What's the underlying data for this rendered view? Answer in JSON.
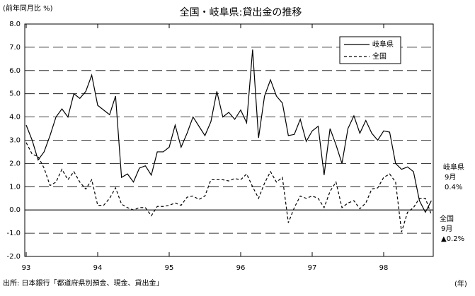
{
  "chart_data": {
    "type": "line",
    "title": "全国・岐阜県:貸出金の推移",
    "y_label": "(前年同月比 %)",
    "x_label": "(年)",
    "source": "出所: 日本銀行「都道府県別預金、現金、貸出金」",
    "categories": [
      "93",
      null,
      null,
      null,
      null,
      null,
      null,
      null,
      null,
      null,
      null,
      null,
      "94",
      null,
      null,
      null,
      null,
      null,
      null,
      null,
      null,
      null,
      null,
      null,
      "95",
      null,
      null,
      null,
      null,
      null,
      null,
      null,
      null,
      null,
      null,
      null,
      "96",
      null,
      null,
      null,
      null,
      null,
      null,
      null,
      null,
      null,
      null,
      null,
      "97",
      null,
      null,
      null,
      null,
      null,
      null,
      null,
      null,
      null,
      null,
      null,
      "98",
      null,
      null,
      null,
      null,
      null,
      null,
      null,
      null
    ],
    "ylim": [
      -2,
      8
    ],
    "yticks": [
      {
        "value": -2,
        "label": "-2.0"
      },
      {
        "value": -1,
        "label": "-1.0"
      },
      {
        "value": 0,
        "label": "0.0"
      },
      {
        "value": 1,
        "label": "1.0"
      },
      {
        "value": 2,
        "label": "2.0"
      },
      {
        "value": 3,
        "label": "3.0"
      },
      {
        "value": 4,
        "label": "4.0"
      },
      {
        "value": 5,
        "label": "5.0"
      },
      {
        "value": 6,
        "label": "6.0"
      },
      {
        "value": 7,
        "label": "7.0"
      },
      {
        "value": 8,
        "label": "8.0"
      }
    ],
    "grid": true,
    "legend": "upper right",
    "series": [
      {
        "name": "岐阜県",
        "color": "#000000",
        "line_style": "solid",
        "values": [
          3.65,
          3.0,
          2.15,
          2.5,
          3.2,
          4.0,
          4.35,
          4.0,
          5.0,
          4.8,
          5.1,
          5.8,
          4.5,
          4.3,
          4.1,
          4.9,
          1.4,
          1.55,
          1.2,
          1.8,
          1.9,
          1.5,
          2.5,
          2.5,
          2.7,
          3.65,
          2.7,
          3.3,
          4.0,
          3.6,
          3.2,
          3.8,
          5.1,
          4.0,
          4.2,
          3.9,
          4.3,
          3.75,
          6.9,
          3.1,
          4.9,
          5.6,
          4.9,
          4.6,
          3.2,
          3.25,
          3.9,
          2.95,
          3.4,
          3.6,
          1.5,
          3.5,
          2.8,
          2.0,
          3.5,
          4.05,
          3.3,
          3.85,
          3.3,
          3.0,
          3.4,
          3.35,
          2.0,
          1.75,
          1.85,
          1.65,
          0.4,
          -0.1,
          0.4
        ]
      },
      {
        "name": "全国",
        "color": "#000000",
        "line_style": "dashed",
        "values": [
          2.9,
          2.4,
          2.3,
          1.8,
          1.05,
          1.2,
          1.75,
          1.3,
          1.65,
          1.2,
          0.9,
          1.3,
          0.2,
          0.2,
          0.5,
          0.95,
          0.25,
          0.1,
          0.0,
          0.1,
          0.1,
          -0.25,
          0.15,
          0.15,
          0.2,
          0.3,
          0.2,
          0.55,
          0.6,
          0.45,
          0.6,
          1.3,
          1.3,
          1.3,
          1.25,
          1.35,
          1.3,
          1.55,
          1.0,
          0.5,
          1.15,
          1.65,
          1.2,
          1.4,
          -0.55,
          0.1,
          0.6,
          0.5,
          0.6,
          0.5,
          0.1,
          0.8,
          1.2,
          0.1,
          0.3,
          0.4,
          0.05,
          0.3,
          0.9,
          0.95,
          1.4,
          1.55,
          1.2,
          -0.95,
          -0.1,
          0.1,
          0.5,
          0.5,
          -0.2
        ]
      }
    ],
    "annotations": [
      {
        "lines": [
          "岐阜県",
          "9月",
          "0.4%"
        ]
      },
      {
        "lines": [
          "全国",
          "9月",
          "▲0.2%"
        ]
      }
    ]
  }
}
